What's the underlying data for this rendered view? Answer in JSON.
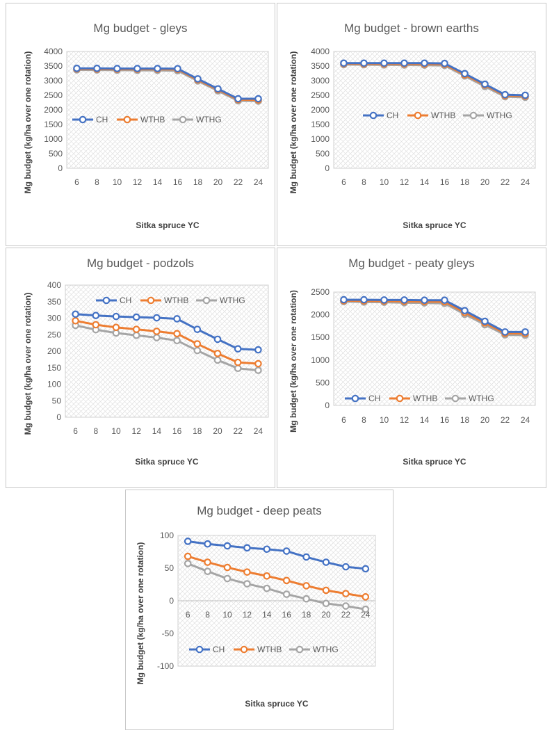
{
  "colors": {
    "CH": "#4472c4",
    "WTHB": "#ed7d31",
    "WTHG": "#a5a5a5"
  },
  "chart_data": [
    {
      "type": "line",
      "title": "Mg budget - gleys",
      "xlabel": "Sitka spruce YC",
      "ylabel": "Mg budget (kg/ha over one rotation)",
      "categories": [
        "6",
        "8",
        "10",
        "12",
        "14",
        "16",
        "18",
        "20",
        "22",
        "24"
      ],
      "ylim": [
        0,
        4000
      ],
      "yticks": [
        0,
        500,
        1000,
        1500,
        2000,
        2500,
        3000,
        3500,
        4000
      ],
      "legend": "middle-left",
      "series": [
        {
          "name": "CH",
          "values": [
            3420,
            3420,
            3415,
            3415,
            3415,
            3410,
            3060,
            2720,
            2380,
            2380
          ]
        },
        {
          "name": "WTHB",
          "values": [
            3400,
            3395,
            3390,
            3390,
            3390,
            3385,
            3030,
            2690,
            2350,
            2340
          ]
        },
        {
          "name": "WTHG",
          "values": [
            3370,
            3365,
            3360,
            3355,
            3350,
            3340,
            2990,
            2650,
            2310,
            2300
          ]
        }
      ]
    },
    {
      "type": "line",
      "title": "Mg budget - brown earths",
      "xlabel": "Sitka spruce YC",
      "ylabel": "Mg budget (kg/ha over one rotation)",
      "categories": [
        "6",
        "8",
        "10",
        "12",
        "14",
        "16",
        "18",
        "20",
        "22",
        "24"
      ],
      "ylim": [
        0,
        4000
      ],
      "yticks": [
        0,
        500,
        1000,
        1500,
        2000,
        2500,
        3000,
        3500,
        4000
      ],
      "legend": "middle",
      "series": [
        {
          "name": "CH",
          "values": [
            3600,
            3600,
            3600,
            3600,
            3600,
            3590,
            3240,
            2880,
            2520,
            2500
          ]
        },
        {
          "name": "WTHB",
          "values": [
            3580,
            3575,
            3570,
            3570,
            3565,
            3560,
            3200,
            2850,
            2490,
            2470
          ]
        },
        {
          "name": "WTHG",
          "values": [
            3550,
            3545,
            3540,
            3535,
            3530,
            3520,
            3160,
            2800,
            2450,
            2430
          ]
        }
      ]
    },
    {
      "type": "line",
      "title": "Mg budget - podzols",
      "xlabel": "Sitka spruce YC",
      "ylabel": "Mg budget (kg/ha over one rotation)",
      "categories": [
        "6",
        "8",
        "10",
        "12",
        "14",
        "16",
        "18",
        "20",
        "22",
        "24"
      ],
      "ylim": [
        0,
        400
      ],
      "yticks": [
        0,
        50,
        100,
        150,
        200,
        250,
        300,
        350,
        400
      ],
      "legend": "top",
      "series": [
        {
          "name": "CH",
          "values": [
            312,
            308,
            305,
            303,
            301,
            298,
            266,
            236,
            207,
            204
          ]
        },
        {
          "name": "WTHB",
          "values": [
            292,
            280,
            272,
            266,
            260,
            253,
            222,
            193,
            166,
            162
          ]
        },
        {
          "name": "WTHG",
          "values": [
            278,
            265,
            255,
            248,
            241,
            232,
            202,
            173,
            148,
            142
          ]
        }
      ]
    },
    {
      "type": "line",
      "title": "Mg budget - peaty gleys",
      "xlabel": "Sitka spruce YC",
      "ylabel": "Mg budget (kg/ha over one rotation)",
      "categories": [
        "6",
        "8",
        "10",
        "12",
        "14",
        "16",
        "18",
        "20",
        "22",
        "24"
      ],
      "ylim": [
        0,
        2500
      ],
      "yticks": [
        0,
        500,
        1000,
        1500,
        2000,
        2500
      ],
      "legend": "bottom",
      "series": [
        {
          "name": "CH",
          "values": [
            2330,
            2330,
            2325,
            2325,
            2320,
            2320,
            2090,
            1855,
            1620,
            1620
          ]
        },
        {
          "name": "WTHB",
          "values": [
            2310,
            2305,
            2300,
            2295,
            2290,
            2285,
            2050,
            1820,
            1590,
            1585
          ]
        },
        {
          "name": "WTHG",
          "values": [
            2290,
            2280,
            2275,
            2265,
            2260,
            2250,
            2010,
            1780,
            1555,
            1550
          ]
        }
      ]
    },
    {
      "type": "line",
      "title": "Mg budget - deep peats",
      "xlabel": "Sitka spruce YC",
      "ylabel": "Mg budget (kg/ha over one rotation)",
      "categories": [
        "6",
        "8",
        "10",
        "12",
        "14",
        "16",
        "18",
        "20",
        "22",
        "24"
      ],
      "ylim": [
        -100,
        100
      ],
      "yticks": [
        -100,
        -50,
        0,
        50,
        100
      ],
      "legend": "bottom",
      "series": [
        {
          "name": "CH",
          "values": [
            91,
            87,
            84,
            81,
            79,
            76,
            67,
            59,
            52,
            49
          ]
        },
        {
          "name": "WTHB",
          "values": [
            68,
            59,
            51,
            44,
            38,
            31,
            23,
            16,
            11,
            6
          ]
        },
        {
          "name": "WTHG",
          "values": [
            57,
            45,
            34,
            26,
            19,
            10,
            3,
            -4,
            -8,
            -13
          ]
        }
      ]
    }
  ]
}
